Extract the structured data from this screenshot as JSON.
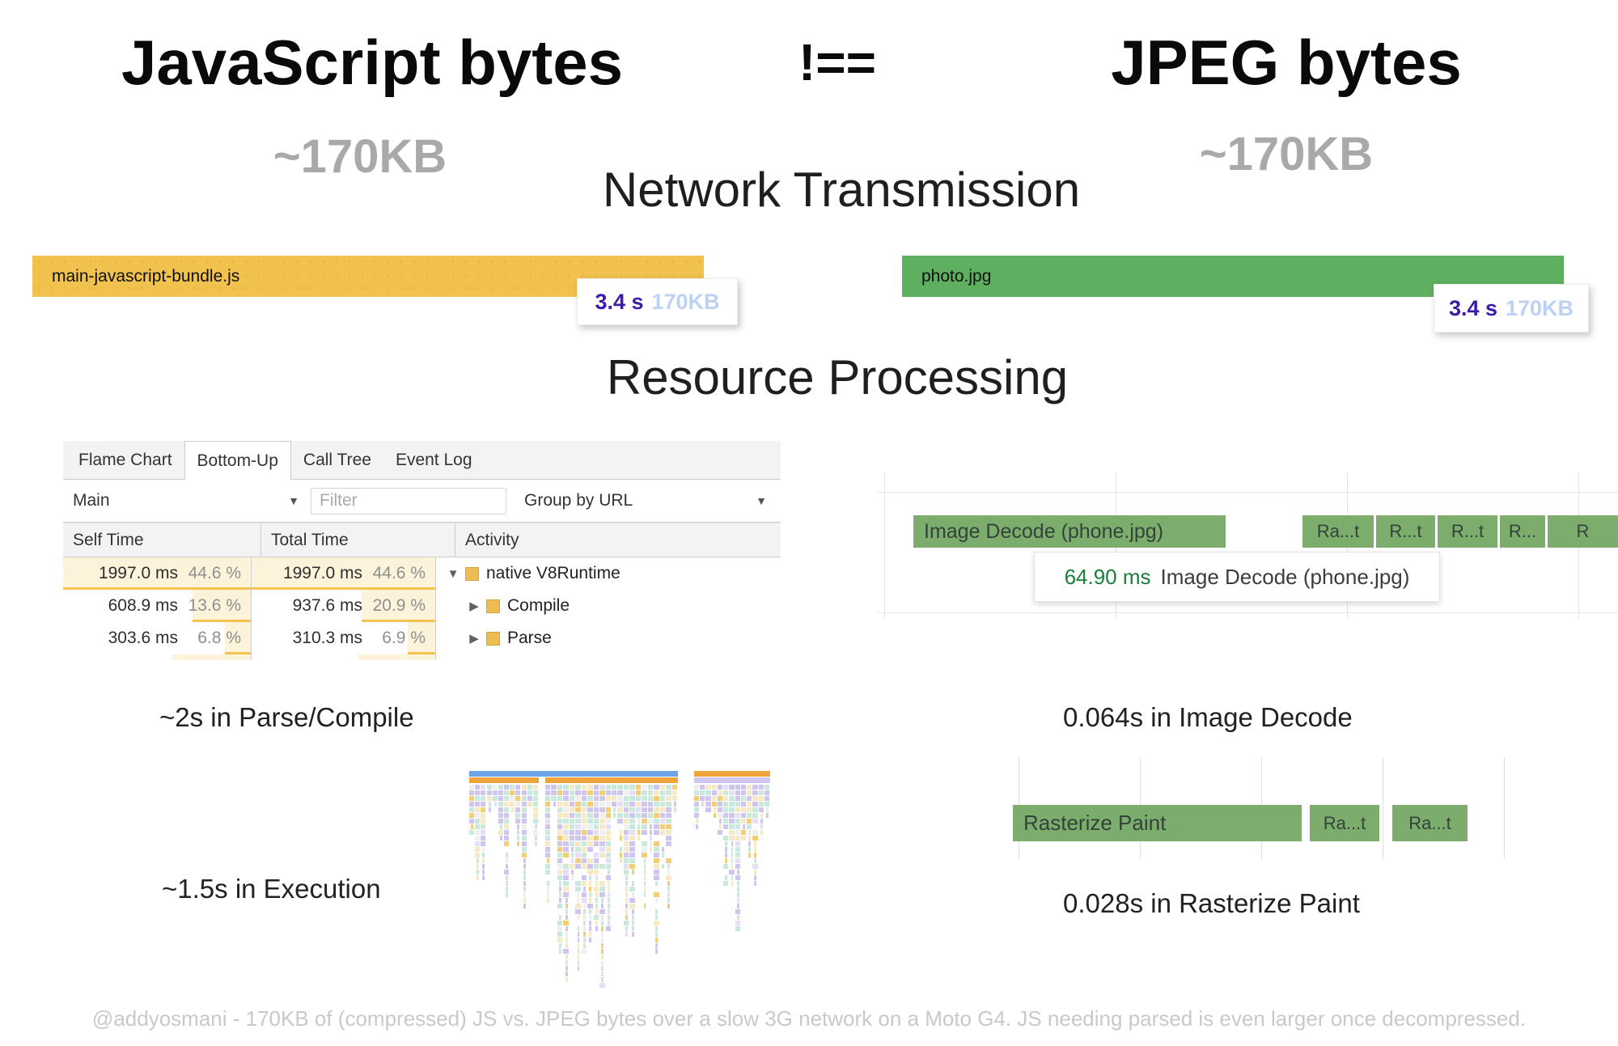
{
  "header": {
    "left_title": "JavaScript bytes",
    "operator": "!==",
    "right_title": "JPEG bytes",
    "left_size": "~170KB",
    "right_size": "~170KB"
  },
  "sections": {
    "network_title": "Network Transmission",
    "processing_title": "Resource Processing"
  },
  "network": {
    "js_bar": {
      "label": "main-javascript-bundle.js",
      "color": "#F1C24D",
      "tooltip": {
        "time": "3.4 s",
        "size": "170KB",
        "time_color": "#3A1CA9",
        "size_color": "#BCD1F4"
      }
    },
    "jpeg_bar": {
      "label": "photo.jpg",
      "color": "#5FAF60",
      "tooltip": {
        "time": "3.4 s",
        "size": "170KB",
        "time_color": "#3A1CA9",
        "size_color": "#BCD1F4"
      }
    }
  },
  "devtools": {
    "tabs": [
      {
        "label": "Flame Chart",
        "selected": false
      },
      {
        "label": "Bottom-Up",
        "selected": true
      },
      {
        "label": "Call Tree",
        "selected": false
      },
      {
        "label": "Event Log",
        "selected": false
      }
    ],
    "toolbar": {
      "thread_select": "Main",
      "filter_placeholder": "Filter",
      "group_select": "Group by URL"
    },
    "columns": [
      "Self Time",
      "Total Time",
      "Activity"
    ],
    "rows": [
      {
        "self_time": "1997.0 ms",
        "self_pct": "44.6 %",
        "total_time": "1997.0 ms",
        "total_pct": "44.6 %",
        "activity": "native V8Runtime",
        "expander": "▼",
        "self_hl": 100,
        "total_hl": 100
      },
      {
        "self_time": "608.9 ms",
        "self_pct": "13.6 %",
        "total_time": "937.6 ms",
        "total_pct": "20.9 %",
        "activity": "Compile",
        "expander": "▶",
        "self_hl": 31,
        "total_hl": 40
      },
      {
        "self_time": "303.6 ms",
        "self_pct": "6.8 %",
        "total_time": "310.3 ms",
        "total_pct": "6.9 %",
        "activity": "Parse",
        "expander": "▶",
        "self_hl": 14,
        "total_hl": 15
      }
    ],
    "swatch_color": "#EDBD53",
    "highlight_color": "#FCF3DA",
    "highlight_underline": "#F4C44C"
  },
  "decode_timeline": {
    "main_bar": "Image Decode (phone.jpg)",
    "raster_bars": [
      "Ra...t",
      "R...t",
      "R...t",
      "R...",
      "R"
    ],
    "tooltip": {
      "time": "64.90 ms",
      "label": "Image Decode (phone.jpg)",
      "time_color": "#188038"
    },
    "bar_color": "#7CAD6C"
  },
  "raster_timeline": {
    "main_bar": "Rasterize Paint",
    "raster_bars": [
      "Ra...t",
      "Ra...t"
    ],
    "bar_color": "#7CAD6C"
  },
  "captions": {
    "parse_compile": "~2s in Parse/Compile",
    "image_decode": "0.064s in Image Decode",
    "execution": "~1.5s in Execution",
    "rasterize": "0.028s in Rasterize Paint"
  },
  "flame_chart": {
    "header_blue": "#6FA3E8",
    "header_orange": "#EFA33B",
    "palette": [
      {
        "color": "#C8E9DB",
        "weight": 0.3
      },
      {
        "color": "#CFC5EF",
        "weight": 0.25
      },
      {
        "color": "#F6E9C5",
        "weight": 0.2
      },
      {
        "color": "#F2CF76",
        "weight": 0.1
      },
      {
        "color": "#E4DEF7",
        "weight": 0.08
      },
      {
        "color": "#EFEFEF",
        "weight": 0.07
      }
    ]
  },
  "footer": "@addyosmani - 170KB of (compressed) JS vs. JPEG bytes over a slow 3G network on a Moto G4. JS needing parsed is even larger once decompressed."
}
